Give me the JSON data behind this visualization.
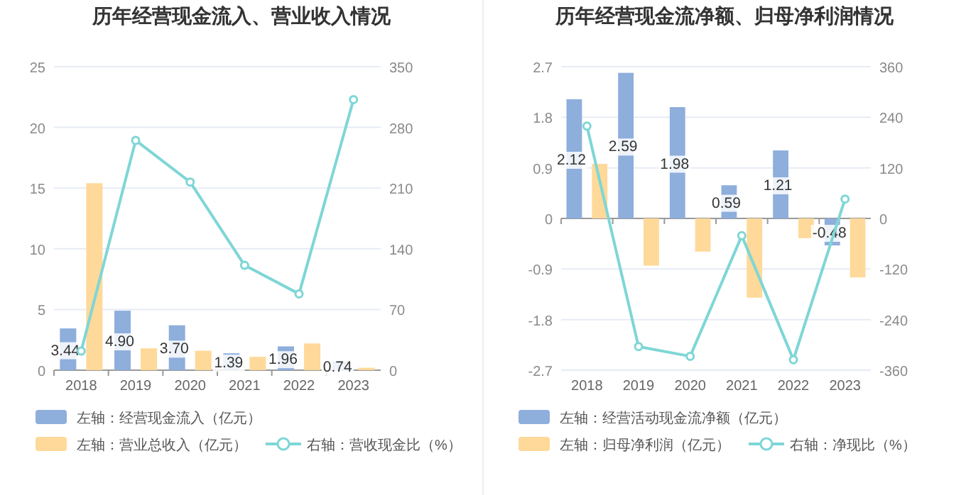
{
  "chart_data": [
    {
      "type": "bar",
      "title": "历年经营现金流入、营业收入情况",
      "categories": [
        "2018",
        "2019",
        "2020",
        "2021",
        "2022",
        "2023"
      ],
      "ylim": [
        0,
        25
      ],
      "yticks": [
        0,
        5,
        10,
        15,
        20,
        25
      ],
      "y2lim": [
        0,
        350
      ],
      "y2ticks": [
        0,
        70,
        140,
        210,
        280,
        350
      ],
      "grid": "y",
      "legend": "bottom",
      "series": [
        {
          "name": "左轴：经营现金流入（亿元）",
          "color": "#8eaedc",
          "values": [
            3.44,
            4.9,
            3.7,
            1.39,
            1.96,
            0.74
          ],
          "value_labels": [
            "3.44",
            "4.90",
            "3.70",
            "1.39",
            "1.96",
            "0.74"
          ]
        },
        {
          "name": "左轴：营业总收入（亿元）",
          "color": "#ffd999",
          "values": [
            15.4,
            1.8,
            1.6,
            1.1,
            2.2,
            0.2
          ]
        },
        {
          "name": "右轴：营收现金比（%）",
          "type": "line",
          "axis": "y2",
          "marker": "circle",
          "color": "#7fd6d6",
          "values": [
            22,
            265,
            217,
            121,
            88,
            312
          ]
        }
      ]
    },
    {
      "type": "bar",
      "title": "历年经营现金流净额、归母净利润情况",
      "categories": [
        "2018",
        "2019",
        "2020",
        "2021",
        "2022",
        "2023"
      ],
      "ylim": [
        -2.7,
        2.7
      ],
      "yticks": [
        -2.7,
        -1.8,
        -0.9,
        0,
        0.9,
        1.8,
        2.7
      ],
      "y2lim": [
        -360,
        360
      ],
      "y2ticks": [
        -360,
        -240,
        -120,
        0,
        120,
        240,
        360
      ],
      "grid": "y",
      "legend": "bottom",
      "series": [
        {
          "name": "左轴：经营活动现金流净额（亿元）",
          "color": "#8eaedc",
          "values": [
            2.12,
            2.59,
            1.98,
            0.59,
            1.21,
            -0.48
          ],
          "value_labels": [
            "2.12",
            "2.59",
            "1.98",
            "0.59",
            "1.21",
            "-0.48"
          ]
        },
        {
          "name": "左轴：归母净利润（亿元）",
          "color": "#ffd999",
          "values": [
            0.97,
            -0.84,
            -0.59,
            -1.41,
            -0.35,
            -1.05
          ]
        },
        {
          "name": "右轴：净现比（%）",
          "type": "line",
          "axis": "y2",
          "marker": "circle",
          "color": "#7fd6d6",
          "values": [
            219,
            -304,
            -327,
            -41,
            -335,
            46
          ]
        }
      ]
    }
  ]
}
